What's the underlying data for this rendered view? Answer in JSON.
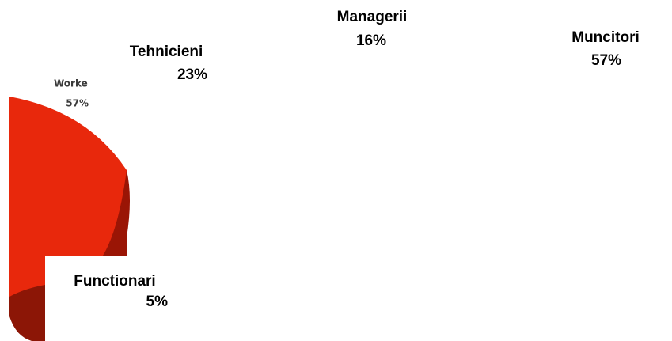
{
  "chart_data": {
    "type": "pie",
    "categories": [
      "Muncitori",
      "Tehnicieni",
      "Managerii",
      "Functionari"
    ],
    "values": [
      57,
      23,
      16,
      5
    ],
    "value_labels": [
      "57%",
      "23%",
      "16%",
      "5%"
    ],
    "inset_label": "Worke",
    "inset_value_label": "57%"
  }
}
